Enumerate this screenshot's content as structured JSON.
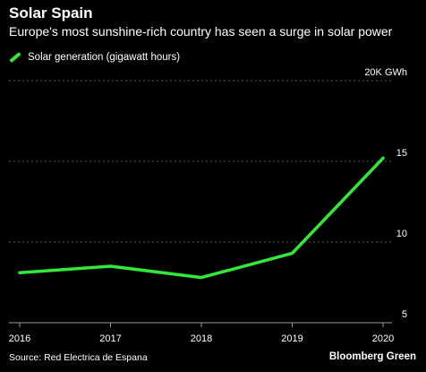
{
  "header": {
    "title": "Solar Spain",
    "subtitle": "Europe's most sunshine-rich country has seen a surge in solar power"
  },
  "footer": {
    "source": "Source: Red Electrica de Espana",
    "brand": "Bloomberg Green"
  },
  "colors": {
    "background": "#000000",
    "line": "#33e83a",
    "grid": "#555555",
    "text": "#ffffff"
  },
  "chart_data": {
    "type": "line",
    "title": "Solar Spain",
    "subtitle": "Europe's most sunshine-rich country has seen a surge in solar power",
    "x": [
      "2016",
      "2017",
      "2018",
      "2019",
      "2020"
    ],
    "series": [
      {
        "name": "Solar generation (gigawatt hours)",
        "values": [
          8.1,
          8.5,
          7.8,
          9.3,
          15.2
        ]
      }
    ],
    "ylim": [
      5,
      20
    ],
    "yticks": [
      {
        "value": 20,
        "label": "20K GWh"
      },
      {
        "value": 15,
        "label": "15"
      },
      {
        "value": 10,
        "label": "10"
      },
      {
        "value": 5,
        "label": "5"
      }
    ],
    "xlabel": "",
    "ylabel": "",
    "grid": true,
    "legend": "top-left"
  }
}
